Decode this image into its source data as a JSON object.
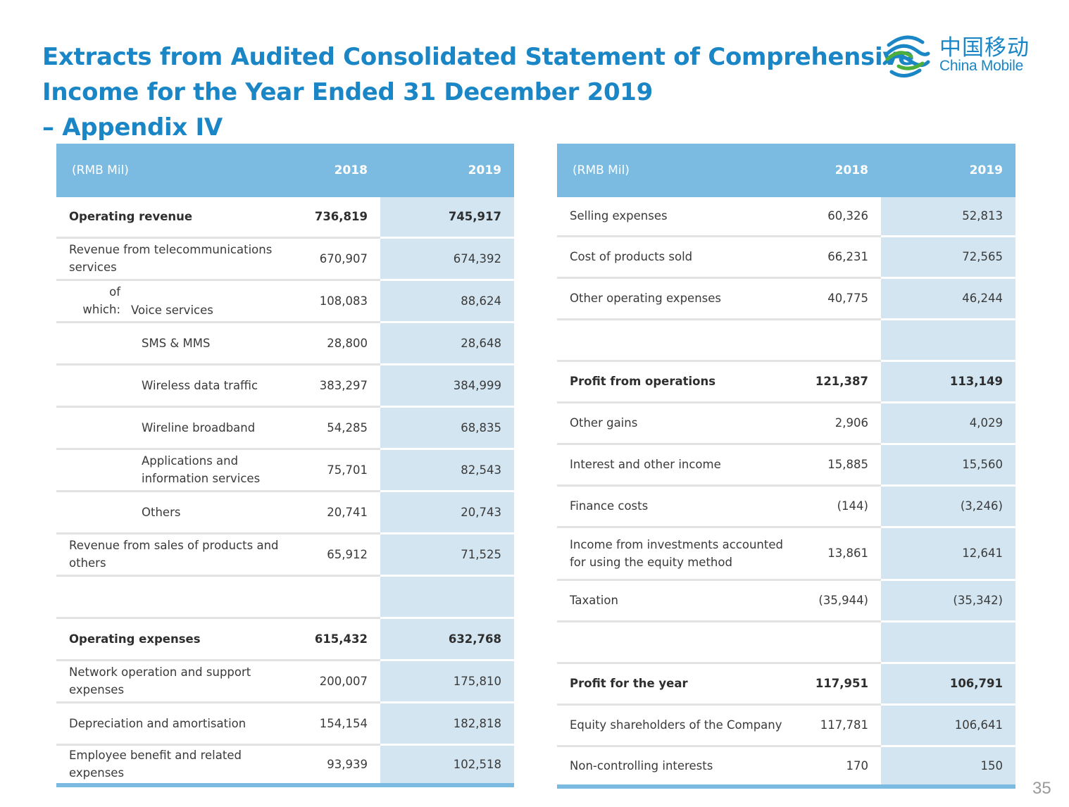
{
  "title": {
    "line1": "Extracts from Audited Consolidated Statement of Comprehensive",
    "line2": "Income for the Year Ended 31 December 2019",
    "line3": "– Appendix IV"
  },
  "logo": {
    "cn": "中国移动",
    "en": "China Mobile"
  },
  "page_number": "35",
  "colors": {
    "title": "#1a86c6",
    "header_bg": "#7bbbe2",
    "col2019_bg": "#d2e5f1",
    "divider": "#e3e3e3"
  },
  "left_table": {
    "header": {
      "label": "(RMB Mil)",
      "y2018": "2018",
      "y2019": "2019"
    },
    "rows": [
      {
        "label": "Operating revenue",
        "v2018": "736,819",
        "v2019": "745,917"
      },
      {
        "label": "Revenue from telecommunications services",
        "v2018": "670,907",
        "v2019": "674,392"
      },
      {
        "prefix": "of which:",
        "label": "Voice services",
        "v2018": "108,083",
        "v2019": "88,624"
      },
      {
        "label": "SMS & MMS",
        "v2018": "28,800",
        "v2019": "28,648"
      },
      {
        "label": "Wireless data traffic",
        "v2018": "383,297",
        "v2019": "384,999"
      },
      {
        "label": "Wireline broadband",
        "v2018": "54,285",
        "v2019": "68,835"
      },
      {
        "label": "Applications and information services",
        "v2018": "75,701",
        "v2019": "82,543"
      },
      {
        "label": "Others",
        "v2018": "20,741",
        "v2019": "20,743"
      },
      {
        "label": "Revenue from sales of products and others",
        "v2018": "65,912",
        "v2019": "71,525"
      },
      {
        "label": "",
        "v2018": "",
        "v2019": ""
      },
      {
        "label": "Operating expenses",
        "v2018": "615,432",
        "v2019": "632,768"
      },
      {
        "label": "Network operation and support expenses",
        "v2018": "200,007",
        "v2019": "175,810"
      },
      {
        "label": "Depreciation and amortisation",
        "v2018": "154,154",
        "v2019": "182,818"
      },
      {
        "label": "Employee benefit and related expenses",
        "v2018": "93,939",
        "v2019": "102,518"
      }
    ]
  },
  "right_table": {
    "header": {
      "label": "(RMB Mil)",
      "y2018": "2018",
      "y2019": "2019"
    },
    "rows": [
      {
        "label": "Selling expenses",
        "v2018": "60,326",
        "v2019": "52,813"
      },
      {
        "label": "Cost of products sold",
        "v2018": "66,231",
        "v2019": "72,565"
      },
      {
        "label": "Other operating expenses",
        "v2018": "40,775",
        "v2019": "46,244"
      },
      {
        "label": "",
        "v2018": "",
        "v2019": ""
      },
      {
        "label": "Profit from operations",
        "v2018": "121,387",
        "v2019": "113,149"
      },
      {
        "label": "Other gains",
        "v2018": "2,906",
        "v2019": "4,029"
      },
      {
        "label": "Interest and other income",
        "v2018": "15,885",
        "v2019": "15,560"
      },
      {
        "label": "Finance costs",
        "v2018": "(144)",
        "v2019": "(3,246)"
      },
      {
        "label": "Income from investments accounted for using the equity method",
        "v2018": "13,861",
        "v2019": "12,641"
      },
      {
        "label": "Taxation",
        "v2018": "(35,944)",
        "v2019": "(35,342)"
      },
      {
        "label": "",
        "v2018": "",
        "v2019": ""
      },
      {
        "label": "Profit for the year",
        "v2018": "117,951",
        "v2019": "106,791"
      },
      {
        "label": "Equity shareholders of the Company",
        "v2018": "117,781",
        "v2019": "106,641"
      },
      {
        "label": "Non-controlling interests",
        "v2018": "170",
        "v2019": "150"
      }
    ]
  }
}
